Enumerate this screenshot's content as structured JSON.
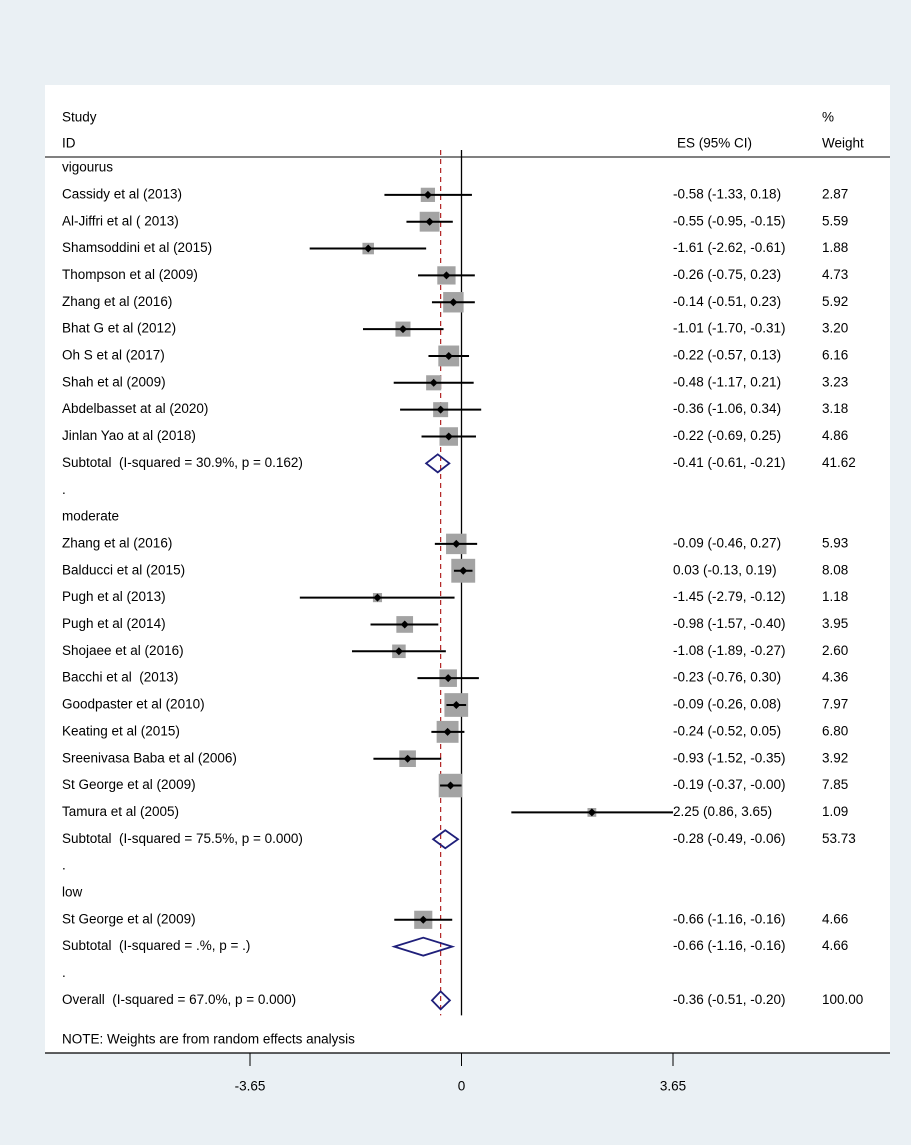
{
  "chart_data": {
    "type": "forest",
    "header": {
      "study": "Study",
      "id": "ID",
      "es": "ES (95% CI)",
      "pct": "%",
      "weight": "Weight"
    },
    "note": "NOTE: Weights are from random effects analysis",
    "xlim": [
      -3.65,
      3.65
    ],
    "xticks": [
      -3.65,
      0,
      3.65
    ],
    "box_color": "#a3a3a3",
    "diamond_color": "#1f1f7a",
    "overall_line_color": "#b22222",
    "rows": [
      {
        "kind": "group",
        "label": "vigourus"
      },
      {
        "kind": "study",
        "label": "Cassidy et al (2013)",
        "es": -0.58,
        "lo": -1.33,
        "hi": 0.18,
        "weight": 2.87,
        "es_label": "-0.58 (-1.33, 0.18)",
        "weight_label": "2.87"
      },
      {
        "kind": "study",
        "label": "Al-Jiffri et al ( 2013)",
        "es": -0.55,
        "lo": -0.95,
        "hi": -0.15,
        "weight": 5.59,
        "es_label": "-0.55 (-0.95, -0.15)",
        "weight_label": "5.59"
      },
      {
        "kind": "study",
        "label": "Shamsoddini et al (2015)",
        "es": -1.61,
        "lo": -2.62,
        "hi": -0.61,
        "weight": 1.88,
        "es_label": "-1.61 (-2.62, -0.61)",
        "weight_label": "1.88"
      },
      {
        "kind": "study",
        "label": "Thompson et al (2009)",
        "es": -0.26,
        "lo": -0.75,
        "hi": 0.23,
        "weight": 4.73,
        "es_label": "-0.26 (-0.75, 0.23)",
        "weight_label": "4.73"
      },
      {
        "kind": "study",
        "label": "Zhang et al (2016)",
        "es": -0.14,
        "lo": -0.51,
        "hi": 0.23,
        "weight": 5.92,
        "es_label": "-0.14 (-0.51, 0.23)",
        "weight_label": "5.92"
      },
      {
        "kind": "study",
        "label": "Bhat G et al (2012)",
        "es": -1.01,
        "lo": -1.7,
        "hi": -0.31,
        "weight": 3.2,
        "es_label": "-1.01 (-1.70, -0.31)",
        "weight_label": "3.20"
      },
      {
        "kind": "study",
        "label": "Oh S et al (2017)",
        "es": -0.22,
        "lo": -0.57,
        "hi": 0.13,
        "weight": 6.16,
        "es_label": "-0.22 (-0.57, 0.13)",
        "weight_label": "6.16"
      },
      {
        "kind": "study",
        "label": "Shah et al (2009)",
        "es": -0.48,
        "lo": -1.17,
        "hi": 0.21,
        "weight": 3.23,
        "es_label": "-0.48 (-1.17, 0.21)",
        "weight_label": "3.23"
      },
      {
        "kind": "study",
        "label": "Abdelbasset at al (2020)",
        "es": -0.36,
        "lo": -1.06,
        "hi": 0.34,
        "weight": 3.18,
        "es_label": "-0.36 (-1.06, 0.34)",
        "weight_label": "3.18"
      },
      {
        "kind": "study",
        "label": "Jinlan Yao at al (2018)",
        "es": -0.22,
        "lo": -0.69,
        "hi": 0.25,
        "weight": 4.86,
        "es_label": "-0.22 (-0.69, 0.25)",
        "weight_label": "4.86"
      },
      {
        "kind": "subtotal",
        "label": "Subtotal  (I-squared = 30.9%, p = 0.162)",
        "es": -0.41,
        "lo": -0.61,
        "hi": -0.21,
        "weight": 41.62,
        "es_label": "-0.41 (-0.61, -0.21)",
        "weight_label": "41.62"
      },
      {
        "kind": "spacer",
        "label": "."
      },
      {
        "kind": "group",
        "label": "moderate"
      },
      {
        "kind": "study",
        "label": "Zhang et al (2016)",
        "es": -0.09,
        "lo": -0.46,
        "hi": 0.27,
        "weight": 5.93,
        "es_label": "-0.09 (-0.46, 0.27)",
        "weight_label": "5.93"
      },
      {
        "kind": "study",
        "label": "Balducci et al (2015)",
        "es": 0.03,
        "lo": -0.13,
        "hi": 0.19,
        "weight": 8.08,
        "es_label": "0.03 (-0.13, 0.19)",
        "weight_label": "8.08"
      },
      {
        "kind": "study",
        "label": "Pugh et al (2013)",
        "es": -1.45,
        "lo": -2.79,
        "hi": -0.12,
        "weight": 1.18,
        "es_label": "-1.45 (-2.79, -0.12)",
        "weight_label": "1.18"
      },
      {
        "kind": "study",
        "label": "Pugh et al (2014)",
        "es": -0.98,
        "lo": -1.57,
        "hi": -0.4,
        "weight": 3.95,
        "es_label": "-0.98 (-1.57, -0.40)",
        "weight_label": "3.95"
      },
      {
        "kind": "study",
        "label": "Shojaee et al (2016)",
        "es": -1.08,
        "lo": -1.89,
        "hi": -0.27,
        "weight": 2.6,
        "es_label": "-1.08 (-1.89, -0.27)",
        "weight_label": "2.60"
      },
      {
        "kind": "study",
        "label": "Bacchi et al  (2013)",
        "es": -0.23,
        "lo": -0.76,
        "hi": 0.3,
        "weight": 4.36,
        "es_label": "-0.23 (-0.76, 0.30)",
        "weight_label": "4.36"
      },
      {
        "kind": "study",
        "label": "Goodpaster et al (2010)",
        "es": -0.09,
        "lo": -0.26,
        "hi": 0.08,
        "weight": 7.97,
        "es_label": "-0.09 (-0.26, 0.08)",
        "weight_label": "7.97"
      },
      {
        "kind": "study",
        "label": "Keating et al (2015)",
        "es": -0.24,
        "lo": -0.52,
        "hi": 0.05,
        "weight": 6.8,
        "es_label": "-0.24 (-0.52, 0.05)",
        "weight_label": "6.80"
      },
      {
        "kind": "study",
        "label": "Sreenivasa Baba et al (2006)",
        "es": -0.93,
        "lo": -1.52,
        "hi": -0.35,
        "weight": 3.92,
        "es_label": "-0.93 (-1.52, -0.35)",
        "weight_label": "3.92"
      },
      {
        "kind": "study",
        "label": "St George et al (2009)",
        "es": -0.19,
        "lo": -0.37,
        "hi": 0,
        "weight": 7.85,
        "es_label": "-0.19 (-0.37, -0.00)",
        "weight_label": "7.85"
      },
      {
        "kind": "study",
        "label": "Tamura et al (2005)",
        "es": 2.25,
        "lo": 0.86,
        "hi": 3.65,
        "weight": 1.09,
        "es_label": "2.25 (0.86, 3.65)",
        "weight_label": "1.09"
      },
      {
        "kind": "subtotal",
        "label": "Subtotal  (I-squared = 75.5%, p = 0.000)",
        "es": -0.28,
        "lo": -0.49,
        "hi": -0.06,
        "weight": 53.73,
        "es_label": "-0.28 (-0.49, -0.06)",
        "weight_label": "53.73"
      },
      {
        "kind": "spacer",
        "label": "."
      },
      {
        "kind": "group",
        "label": "low"
      },
      {
        "kind": "study",
        "label": "St George et al (2009)",
        "es": -0.66,
        "lo": -1.16,
        "hi": -0.16,
        "weight": 4.66,
        "es_label": "-0.66 (-1.16, -0.16)",
        "weight_label": "4.66"
      },
      {
        "kind": "subtotal",
        "label": "Subtotal  (I-squared = .%, p = .)",
        "es": -0.66,
        "lo": -1.16,
        "hi": -0.16,
        "weight": 4.66,
        "es_label": "-0.66 (-1.16, -0.16)",
        "weight_label": "4.66"
      },
      {
        "kind": "spacer",
        "label": "."
      },
      {
        "kind": "overall",
        "label": "Overall  (I-squared = 67.0%, p = 0.000)",
        "es": -0.36,
        "lo": -0.51,
        "hi": -0.2,
        "weight": 100,
        "es_label": "-0.36 (-0.51, -0.20)",
        "weight_label": "100.00"
      }
    ]
  }
}
